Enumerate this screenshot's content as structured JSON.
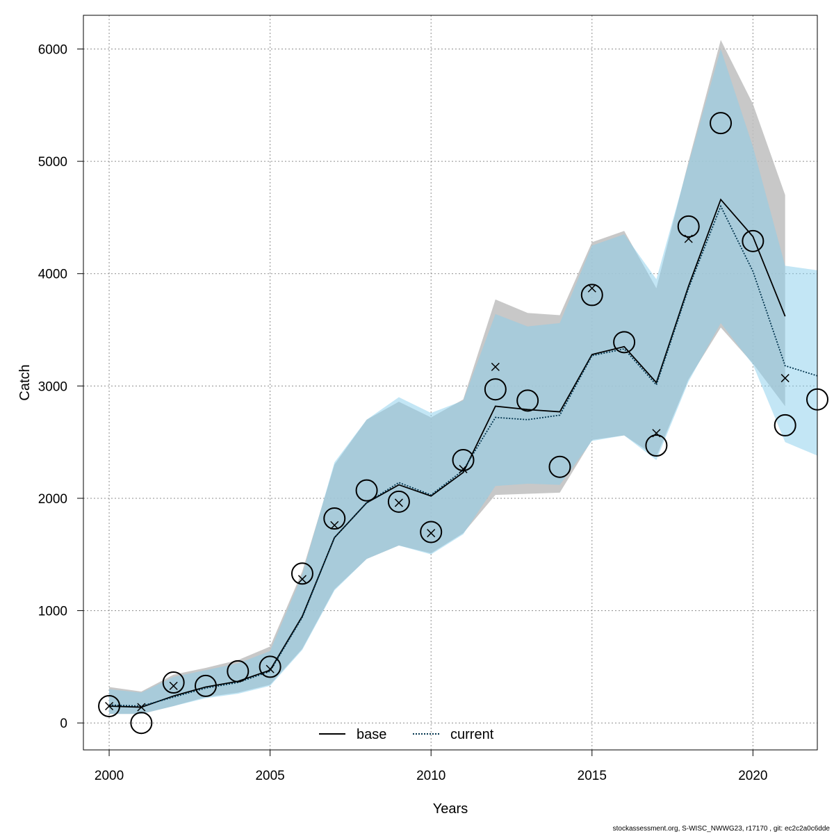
{
  "chart_data": {
    "type": "line",
    "xlabel": "Years",
    "ylabel": "Catch",
    "xlim": [
      1999.2,
      2022
    ],
    "ylim": [
      -240,
      6300
    ],
    "xticks": [
      2000,
      2005,
      2010,
      2015,
      2020
    ],
    "yticks": [
      0,
      1000,
      2000,
      3000,
      4000,
      5000,
      6000
    ],
    "grid": true,
    "legend_position": "bottom-center",
    "series": [
      {
        "name": "base",
        "line_style": "solid",
        "line_color": "#000000",
        "band_color": "#bebebe",
        "x": [
          2000,
          2001,
          2002,
          2003,
          2004,
          2005,
          2006,
          2007,
          2008,
          2009,
          2010,
          2011,
          2012,
          2013,
          2014,
          2015,
          2016,
          2017,
          2018,
          2019,
          2020,
          2021
        ],
        "estimate": [
          150,
          140,
          240,
          320,
          370,
          470,
          950,
          1650,
          1960,
          2120,
          2020,
          2230,
          2820,
          2790,
          2770,
          3280,
          3350,
          3030,
          3890,
          4660,
          4330,
          3620
        ],
        "lower": [
          80,
          80,
          150,
          230,
          270,
          340,
          660,
          1190,
          1460,
          1580,
          1510,
          1690,
          2030,
          2040,
          2050,
          2520,
          2560,
          2370,
          3060,
          3520,
          3200,
          2820
        ],
        "upper": [
          320,
          280,
          430,
          490,
          560,
          680,
          1350,
          2300,
          2700,
          2860,
          2720,
          2880,
          3770,
          3650,
          3630,
          4280,
          4380,
          3870,
          5000,
          6080,
          5510,
          4700
        ],
        "observed": [
          150,
          140,
          330,
          null,
          null,
          480,
          1280,
          1760,
          null,
          1960,
          1690,
          2260,
          3170,
          null,
          null,
          3870,
          null,
          2580,
          4310,
          null,
          null,
          3070
        ],
        "observed_marker": "x"
      },
      {
        "name": "current",
        "line_style": "dotted",
        "line_color": "#00334d",
        "band_color": "#87ceeb",
        "x": [
          2000,
          2001,
          2002,
          2003,
          2004,
          2005,
          2006,
          2007,
          2008,
          2009,
          2010,
          2011,
          2012,
          2013,
          2014,
          2015,
          2016,
          2017,
          2018,
          2019,
          2020,
          2021,
          2022
        ],
        "estimate": [
          160,
          150,
          230,
          310,
          360,
          460,
          940,
          1650,
          1960,
          2140,
          2030,
          2250,
          2720,
          2700,
          2740,
          3270,
          3330,
          3010,
          3870,
          4600,
          4020,
          3180,
          3090
        ],
        "lower": [
          80,
          80,
          150,
          220,
          260,
          330,
          650,
          1180,
          1460,
          1580,
          1500,
          1680,
          2110,
          2130,
          2120,
          2510,
          2560,
          2340,
          3040,
          3560,
          3190,
          2500,
          2380
        ],
        "upper": [
          300,
          270,
          410,
          470,
          530,
          640,
          1320,
          2320,
          2700,
          2900,
          2760,
          2870,
          3640,
          3530,
          3560,
          4250,
          4350,
          3950,
          4980,
          6000,
          5130,
          4070,
          4030
        ],
        "observed": [
          150,
          0,
          360,
          330,
          460,
          500,
          1330,
          1820,
          2070,
          1970,
          1700,
          2340,
          2970,
          2870,
          2280,
          3810,
          3390,
          2470,
          4420,
          5340,
          4290,
          2650,
          2880
        ],
        "observed_marker": "circle"
      }
    ]
  },
  "footer": "stockassessment.org, S-WISC_NWWG23, r17170 , git: ec2c2a0c6dde"
}
